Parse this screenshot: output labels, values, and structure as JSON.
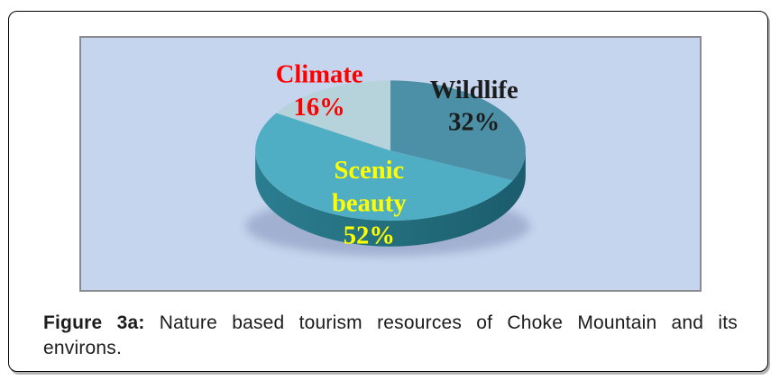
{
  "figure": {
    "caption": {
      "prefix": "Figure 3a:",
      "line1_rest": "Nature based tourism resources of Choke Mountain and its",
      "line2": "environs."
    }
  },
  "chart_data": {
    "type": "pie",
    "style": "3d",
    "title": "",
    "legend": "none",
    "start_angle_deg": 0,
    "direction": "clockwise",
    "background_color": "#C6D5EE",
    "plot_border_color": "#8B8B92",
    "categories": [
      "Wildlife",
      "Scenic beauty",
      "Climate"
    ],
    "values": [
      32,
      52,
      16
    ],
    "slices": [
      {
        "label": "Wildlife",
        "value": 32,
        "percent_text": "32%",
        "label_lines": [
          "Wildlife",
          "32%"
        ],
        "color": "#4B90A6",
        "label_color": "#1C1C1C"
      },
      {
        "label": "Scenic beauty",
        "value": 52,
        "percent_text": "52%",
        "label_lines": [
          "Scenic",
          "beauty",
          "52%"
        ],
        "color": "#4FAEC4",
        "label_color": "#FFFF00"
      },
      {
        "label": "Climate",
        "value": 16,
        "percent_text": "16%",
        "label_lines": [
          "Climate",
          "16%"
        ],
        "color": "#B6D3DB",
        "label_color": "#FF0000"
      }
    ],
    "side_gradient": [
      "#2B7D90",
      "#24707F",
      "#1B5C6D"
    ],
    "shadow_color": "#6F7FA8"
  }
}
